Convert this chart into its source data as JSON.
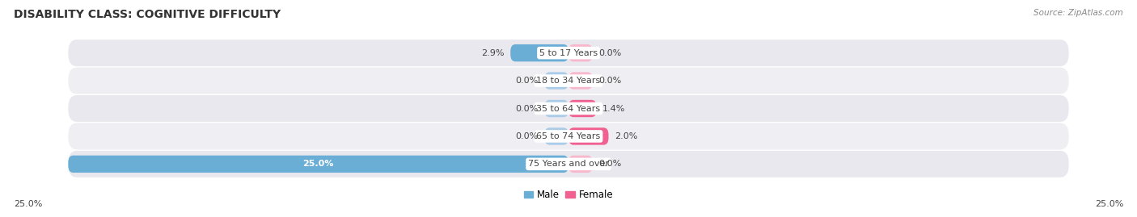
{
  "title": "DISABILITY CLASS: COGNITIVE DIFFICULTY",
  "source": "Source: ZipAtlas.com",
  "categories": [
    "5 to 17 Years",
    "18 to 34 Years",
    "35 to 64 Years",
    "65 to 74 Years",
    "75 Years and over"
  ],
  "male_values": [
    2.9,
    0.0,
    0.0,
    0.0,
    25.0
  ],
  "female_values": [
    0.0,
    0.0,
    1.4,
    2.0,
    0.0
  ],
  "max_val": 25.0,
  "min_stub": 1.2,
  "male_color": "#6aaed6",
  "male_color_light": "#aacce8",
  "female_color": "#f06090",
  "female_color_light": "#f8b8cc",
  "row_bg_color": "#e8e8ee",
  "row_bg_alt": "#efeff3",
  "label_color": "#444444",
  "title_color": "#333333",
  "source_color": "#888888",
  "title_fontsize": 10,
  "label_fontsize": 8,
  "category_fontsize": 8,
  "legend_fontsize": 8.5,
  "axis_tick_fontsize": 8
}
